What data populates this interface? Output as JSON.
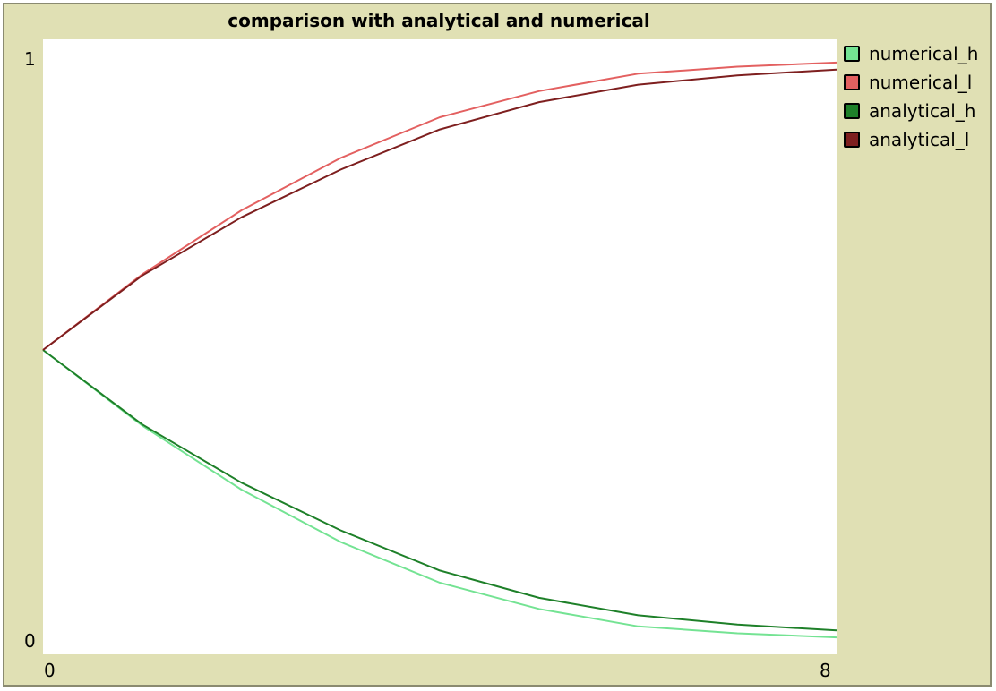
{
  "chart_data": {
    "type": "line",
    "title": "comparison with analytical and numerical",
    "xlabel": "",
    "ylabel": "",
    "xlim": [
      0,
      8
    ],
    "ylim": [
      0,
      1
    ],
    "x_ticks": [
      "0",
      "8"
    ],
    "y_ticks": [
      "1",
      "0"
    ],
    "grid": false,
    "legend_position": "right",
    "x": [
      0,
      1,
      2,
      3,
      4,
      5,
      6,
      7,
      8
    ],
    "series": [
      {
        "name": "numerical_h",
        "color": "#74e393",
        "values": [
          0.5,
          0.37,
          0.26,
          0.17,
          0.1,
          0.055,
          0.025,
          0.013,
          0.006
        ]
      },
      {
        "name": "numerical_l",
        "color": "#e36060",
        "values": [
          0.5,
          0.63,
          0.74,
          0.83,
          0.9,
          0.945,
          0.975,
          0.987,
          0.994
        ]
      },
      {
        "name": "analytical_h",
        "color": "#1e8029",
        "values": [
          0.5,
          0.372,
          0.272,
          0.19,
          0.121,
          0.074,
          0.044,
          0.028,
          0.018
        ]
      },
      {
        "name": "analytical_l",
        "color": "#7e1f1f",
        "values": [
          0.5,
          0.628,
          0.728,
          0.81,
          0.879,
          0.926,
          0.956,
          0.972,
          0.982
        ]
      }
    ]
  }
}
